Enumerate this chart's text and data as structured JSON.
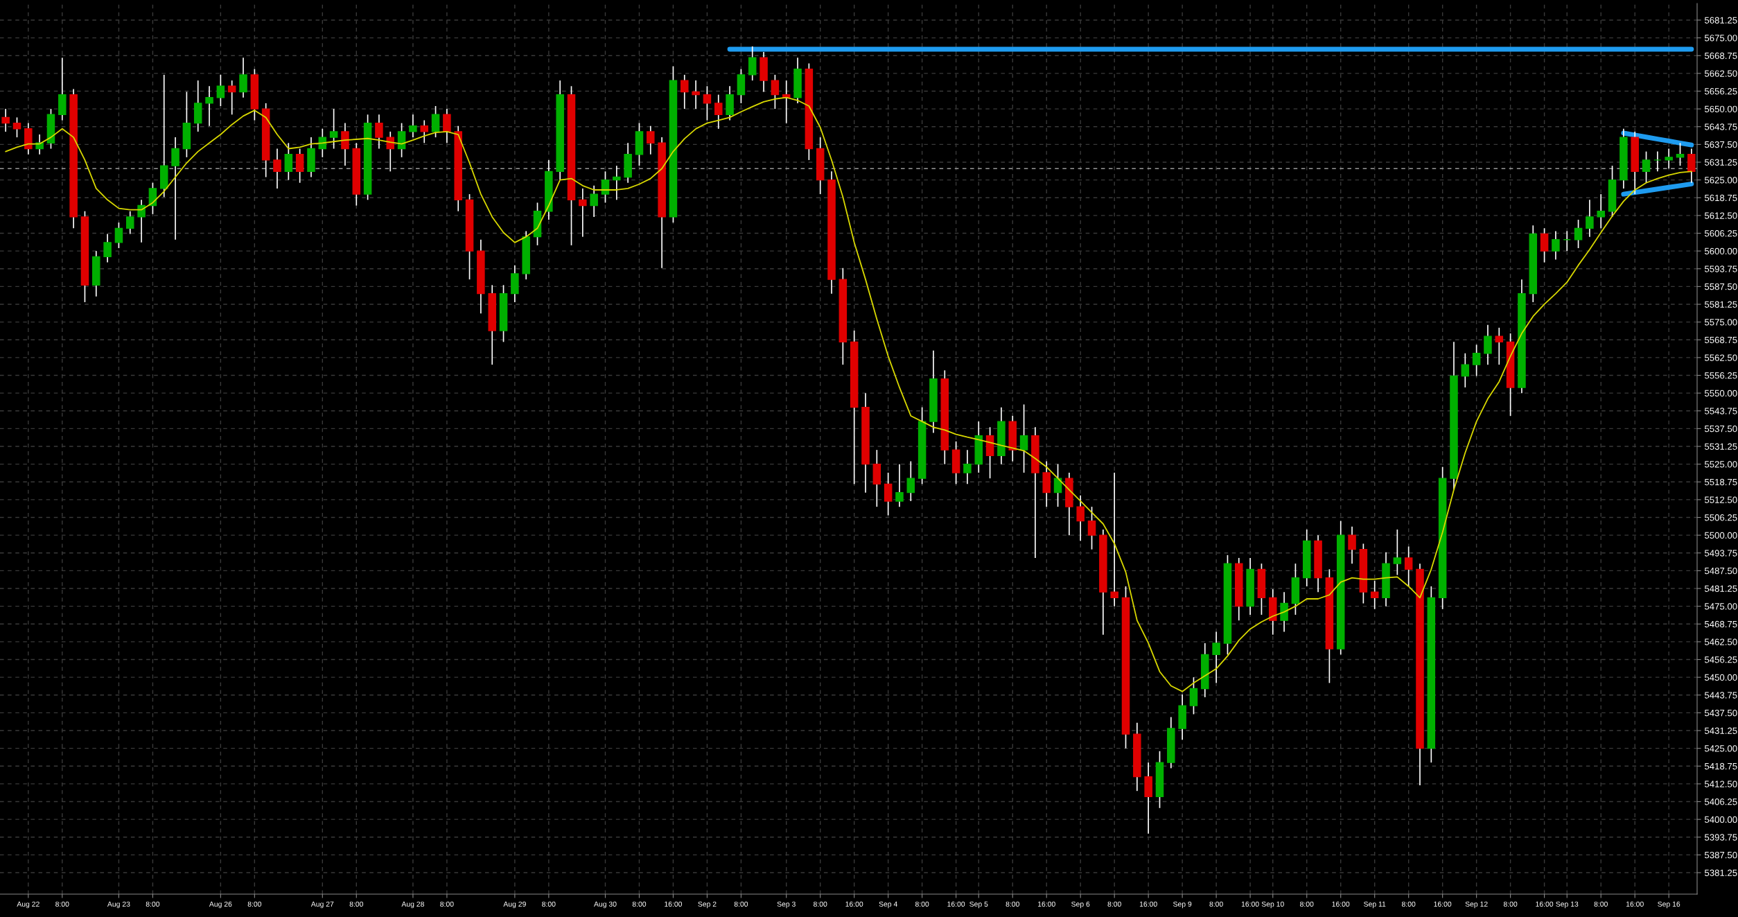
{
  "chart_data": {
    "type": "candlestick",
    "categories": [
      null,
      null,
      "Aug 22",
      null,
      null,
      "8:00",
      null,
      null,
      null,
      null,
      "Aug 23",
      null,
      null,
      "8:00",
      null,
      null,
      null,
      null,
      null,
      "Aug 26",
      null,
      null,
      "8:00",
      null,
      null,
      null,
      null,
      null,
      "Aug 27",
      null,
      null,
      "8:00",
      null,
      null,
      null,
      null,
      "Aug 28",
      null,
      null,
      "8:00",
      null,
      null,
      null,
      null,
      null,
      "Aug 29",
      null,
      null,
      "8:00",
      null,
      null,
      null,
      null,
      "Aug 30",
      null,
      null,
      "8:00",
      null,
      null,
      "16:00",
      null,
      null,
      "Sep 2",
      null,
      null,
      "8:00",
      null,
      null,
      null,
      "Sep 3",
      null,
      null,
      "8:00",
      null,
      null,
      "16:00",
      null,
      null,
      "Sep 4",
      null,
      null,
      "8:00",
      null,
      null,
      "16:00",
      null,
      "Sep 5",
      null,
      null,
      "8:00",
      null,
      null,
      "16:00",
      null,
      null,
      "Sep 6",
      null,
      null,
      "8:00",
      null,
      null,
      "16:00",
      null,
      null,
      "Sep 9",
      null,
      null,
      "8:00",
      null,
      null,
      "16:00",
      null,
      "Sep 10",
      null,
      null,
      "8:00",
      null,
      null,
      "16:00",
      null,
      null,
      "Sep 11",
      null,
      null,
      "8:00",
      null,
      null,
      "16:00",
      null,
      null,
      "Sep 12",
      null,
      null,
      "8:00",
      null,
      null,
      "16:00",
      null,
      "Sep 13",
      null,
      null,
      "8:00",
      null,
      null,
      "16:00",
      null,
      null,
      "Sep 16",
      null,
      null
    ],
    "ohlc": [
      [
        5647,
        5650,
        5642,
        5645
      ],
      [
        5645,
        5647,
        5640,
        5643
      ],
      [
        5643,
        5645,
        5634,
        5636
      ],
      [
        5636,
        5641,
        5634,
        5638
      ],
      [
        5638,
        5650,
        5636,
        5648
      ],
      [
        5648,
        5668,
        5646,
        5655
      ],
      [
        5655,
        5657,
        5608,
        5612
      ],
      [
        5612,
        5614,
        5582,
        5588
      ],
      [
        5588,
        5600,
        5584,
        5598
      ],
      [
        5598,
        5606,
        5596,
        5603
      ],
      [
        5603,
        5610,
        5601,
        5608
      ],
      [
        5608,
        5614,
        5606,
        5612
      ],
      [
        5612,
        5618,
        5603,
        5616
      ],
      [
        5616,
        5624,
        5613,
        5622
      ],
      [
        5622,
        5662,
        5619,
        5630
      ],
      [
        5630,
        5640,
        5604,
        5636
      ],
      [
        5636,
        5656,
        5633,
        5645
      ],
      [
        5645,
        5660,
        5642,
        5652
      ],
      [
        5652,
        5658,
        5644,
        5654
      ],
      [
        5654,
        5662,
        5651,
        5658
      ],
      [
        5658,
        5660,
        5648,
        5656
      ],
      [
        5656,
        5668,
        5654,
        5662
      ],
      [
        5662,
        5664,
        5646,
        5650
      ],
      [
        5650,
        5652,
        5626,
        5632
      ],
      [
        5632,
        5636,
        5622,
        5628
      ],
      [
        5628,
        5638,
        5625,
        5634
      ],
      [
        5634,
        5636,
        5624,
        5628
      ],
      [
        5628,
        5640,
        5626,
        5636
      ],
      [
        5636,
        5643,
        5633,
        5640
      ],
      [
        5640,
        5650,
        5636,
        5642
      ],
      [
        5642,
        5645,
        5630,
        5636
      ],
      [
        5636,
        5638,
        5616,
        5620
      ],
      [
        5620,
        5648,
        5618,
        5645
      ],
      [
        5645,
        5648,
        5636,
        5640
      ],
      [
        5640,
        5642,
        5628,
        5636
      ],
      [
        5636,
        5645,
        5633,
        5642
      ],
      [
        5642,
        5648,
        5640,
        5644
      ],
      [
        5644,
        5646,
        5638,
        5642
      ],
      [
        5642,
        5651,
        5640,
        5648
      ],
      [
        5648,
        5650,
        5638,
        5642
      ],
      [
        5642,
        5644,
        5614,
        5618
      ],
      [
        5618,
        5620,
        5590,
        5600
      ],
      [
        5600,
        5604,
        5578,
        5585
      ],
      [
        5585,
        5588,
        5560,
        5572
      ],
      [
        5572,
        5588,
        5568,
        5585
      ],
      [
        5585,
        5595,
        5582,
        5592
      ],
      [
        5592,
        5607,
        5590,
        5605
      ],
      [
        5605,
        5617,
        5602,
        5614
      ],
      [
        5614,
        5632,
        5611,
        5628
      ],
      [
        5628,
        5660,
        5625,
        5655
      ],
      [
        5655,
        5658,
        5602,
        5618
      ],
      [
        5618,
        5622,
        5605,
        5616
      ],
      [
        5616,
        5623,
        5612,
        5620
      ],
      [
        5620,
        5628,
        5617,
        5625
      ],
      [
        5625,
        5630,
        5618,
        5626
      ],
      [
        5626,
        5638,
        5624,
        5634
      ],
      [
        5634,
        5645,
        5630,
        5642
      ],
      [
        5642,
        5644,
        5634,
        5638
      ],
      [
        5638,
        5640,
        5594,
        5612
      ],
      [
        5612,
        5665,
        5610,
        5660
      ],
      [
        5660,
        5662,
        5650,
        5656
      ],
      [
        5656,
        5660,
        5650,
        5655
      ],
      [
        5655,
        5658,
        5646,
        5652
      ],
      [
        5652,
        5655,
        5643,
        5648
      ],
      [
        5648,
        5658,
        5646,
        5655
      ],
      [
        5655,
        5664,
        5652,
        5662
      ],
      [
        5662,
        5672,
        5660,
        5668
      ],
      [
        5668,
        5670,
        5656,
        5660
      ],
      [
        5660,
        5662,
        5650,
        5655
      ],
      [
        5655,
        5660,
        5645,
        5654
      ],
      [
        5654,
        5668,
        5652,
        5664
      ],
      [
        5664,
        5666,
        5632,
        5636
      ],
      [
        5636,
        5640,
        5620,
        5625
      ],
      [
        5625,
        5628,
        5585,
        5590
      ],
      [
        5590,
        5594,
        5560,
        5568
      ],
      [
        5568,
        5572,
        5518,
        5545
      ],
      [
        5545,
        5550,
        5515,
        5525
      ],
      [
        5525,
        5530,
        5510,
        5518
      ],
      [
        5518,
        5522,
        5507,
        5512
      ],
      [
        5512,
        5525,
        5510,
        5515
      ],
      [
        5515,
        5526,
        5512,
        5520
      ],
      [
        5520,
        5545,
        5518,
        5540
      ],
      [
        5540,
        5565,
        5536,
        5555
      ],
      [
        5555,
        5558,
        5525,
        5530
      ],
      [
        5530,
        5533,
        5518,
        5522
      ],
      [
        5522,
        5530,
        5518,
        5525
      ],
      [
        5525,
        5540,
        5522,
        5535
      ],
      [
        5535,
        5538,
        5520,
        5528
      ],
      [
        5528,
        5545,
        5525,
        5540
      ],
      [
        5540,
        5542,
        5526,
        5530
      ],
      [
        5530,
        5546,
        5522,
        5535
      ],
      [
        5535,
        5538,
        5492,
        5522
      ],
      [
        5522,
        5526,
        5510,
        5515
      ],
      [
        5515,
        5525,
        5510,
        5520
      ],
      [
        5520,
        5522,
        5500,
        5510
      ],
      [
        5510,
        5514,
        5498,
        5505
      ],
      [
        5505,
        5510,
        5495,
        5500
      ],
      [
        5500,
        5502,
        5465,
        5480
      ],
      [
        5480,
        5522,
        5475,
        5478
      ],
      [
        5478,
        5482,
        5425,
        5430
      ],
      [
        5430,
        5434,
        5410,
        5415
      ],
      [
        5415,
        5420,
        5395,
        5408
      ],
      [
        5408,
        5424,
        5404,
        5420
      ],
      [
        5420,
        5436,
        5418,
        5432
      ],
      [
        5432,
        5444,
        5428,
        5440
      ],
      [
        5440,
        5450,
        5437,
        5446
      ],
      [
        5446,
        5462,
        5443,
        5458
      ],
      [
        5458,
        5466,
        5448,
        5462
      ],
      [
        5462,
        5493,
        5458,
        5490
      ],
      [
        5490,
        5492,
        5470,
        5475
      ],
      [
        5475,
        5492,
        5472,
        5488
      ],
      [
        5488,
        5490,
        5472,
        5478
      ],
      [
        5478,
        5481,
        5465,
        5470
      ],
      [
        5470,
        5480,
        5466,
        5476
      ],
      [
        5476,
        5490,
        5472,
        5485
      ],
      [
        5485,
        5502,
        5482,
        5498
      ],
      [
        5498,
        5500,
        5480,
        5485
      ],
      [
        5485,
        5488,
        5448,
        5460
      ],
      [
        5460,
        5505,
        5458,
        5500
      ],
      [
        5500,
        5503,
        5490,
        5495
      ],
      [
        5495,
        5497,
        5476,
        5480
      ],
      [
        5480,
        5484,
        5474,
        5478
      ],
      [
        5478,
        5494,
        5475,
        5490
      ],
      [
        5490,
        5502,
        5486,
        5492
      ],
      [
        5492,
        5496,
        5482,
        5488
      ],
      [
        5488,
        5490,
        5412,
        5425
      ],
      [
        5425,
        5482,
        5420,
        5478
      ],
      [
        5478,
        5524,
        5474,
        5520
      ],
      [
        5520,
        5568,
        5516,
        5556
      ],
      [
        5556,
        5564,
        5552,
        5560
      ],
      [
        5560,
        5567,
        5556,
        5564
      ],
      [
        5564,
        5574,
        5560,
        5570
      ],
      [
        5570,
        5573,
        5560,
        5568
      ],
      [
        5568,
        5571,
        5542,
        5552
      ],
      [
        5552,
        5590,
        5550,
        5585
      ],
      [
        5585,
        5609,
        5582,
        5606
      ],
      [
        5606,
        5608,
        5596,
        5600
      ],
      [
        5600,
        5607,
        5597,
        5604
      ],
      [
        5604,
        5607,
        5600,
        5604
      ],
      [
        5604,
        5611,
        5601,
        5608
      ],
      [
        5608,
        5618,
        5605,
        5612
      ],
      [
        5612,
        5620,
        5608,
        5614
      ],
      [
        5614,
        5630,
        5612,
        5625
      ],
      [
        5625,
        5643,
        5622,
        5640
      ],
      [
        5640,
        5642,
        5620,
        5628
      ],
      [
        5628,
        5635,
        5624,
        5632
      ],
      [
        5632,
        5635,
        5628,
        5632
      ],
      [
        5632,
        5636,
        5629,
        5633
      ],
      [
        5633,
        5638,
        5630,
        5634
      ],
      [
        5634,
        5636,
        5624,
        5628
      ]
    ],
    "colors": [
      "#e00000",
      "#e00000",
      "#e00000",
      "#00b000",
      "#00b000",
      "#00b000",
      "#e00000",
      "#e00000",
      "#00b000",
      "#00b000",
      "#00b000",
      "#00b000",
      "#00b000",
      "#00b000",
      "#00b000",
      "#00b000",
      "#00b000",
      "#00b000",
      "#00b000",
      "#00b000",
      "#e00000",
      "#00b000",
      "#e00000",
      "#e00000",
      "#e00000",
      "#00b000",
      "#e00000",
      "#00b000",
      "#00b000",
      "#00b000",
      "#e00000",
      "#e00000",
      "#00b000",
      "#e00000",
      "#e00000",
      "#00b000",
      "#00b000",
      "#e00000",
      "#00b000",
      "#e00000",
      "#e00000",
      "#e00000",
      "#e00000",
      "#e00000",
      "#00b000",
      "#00b000",
      "#00b000",
      "#00b000",
      "#00b000",
      "#00b000",
      "#e00000",
      "#e00000",
      "#00b000",
      "#00b000",
      "#00b000",
      "#00b000",
      "#00b000",
      "#e00000",
      "#e00000",
      "#00b000",
      "#e00000",
      "#e00000",
      "#e00000",
      "#e00000",
      "#00b000",
      "#00b000",
      "#00b000",
      "#e00000",
      "#e00000",
      "#e00000",
      "#00b000",
      "#e00000",
      "#e00000",
      "#e00000",
      "#e00000",
      "#e00000",
      "#e00000",
      "#e00000",
      "#e00000",
      "#00b000",
      "#00b000",
      "#00b000",
      "#00b000",
      "#e00000",
      "#e00000",
      "#00b000",
      "#00b000",
      "#e00000",
      "#00b000",
      "#e00000",
      "#00b000",
      "#e00000",
      "#e00000",
      "#00b000",
      "#e00000",
      "#e00000",
      "#e00000",
      "#e00000",
      "#e00000",
      "#e00000",
      "#e00000",
      "#e00000",
      "#00b000",
      "#00b000",
      "#00b000",
      "#00b000",
      "#00b000",
      "#00b000",
      "#00b000",
      "#e00000",
      "#00b000",
      "#e00000",
      "#e00000",
      "#00b000",
      "#00b000",
      "#00b000",
      "#e00000",
      "#e00000",
      "#00b000",
      "#e00000",
      "#e00000",
      "#e00000",
      "#00b000",
      "#00b000",
      "#e00000",
      "#e00000",
      "#00b000",
      "#00b000",
      "#00b000",
      "#00b000",
      "#00b000",
      "#00b000",
      "#e00000",
      "#e00000",
      "#00b000",
      "#00b000",
      "#e00000",
      "#00b000",
      "#00b000",
      "#00b000",
      "#00b000",
      "#00b000",
      "#00b000",
      "#00b000",
      "#e00000",
      "#00b000",
      "#00b000",
      "#00b000",
      "#00b000",
      "#e00000"
    ],
    "series": [
      {
        "type": "line",
        "color": "#d8d800",
        "values": [
          5635,
          5636.5,
          5637.7,
          5637.7,
          5640,
          5643,
          5640,
          5632,
          5622,
          5618,
          5615,
          5614.5,
          5614.5,
          5617,
          5621,
          5626,
          5631,
          5635,
          5638,
          5641,
          5644.5,
          5647.5,
          5649.5,
          5647,
          5641,
          5636,
          5636.5,
          5637.7,
          5638,
          5638.5,
          5639,
          5639.3,
          5639.6,
          5639,
          5638.3,
          5637.7,
          5639,
          5640.5,
          5641.7,
          5642,
          5641,
          5631,
          5620,
          5612,
          5606.5,
          5603,
          5605,
          5608,
          5616,
          5625,
          5625.5,
          5623,
          5621.5,
          5621.5,
          5621.5,
          5622,
          5623.5,
          5625.5,
          5629,
          5635,
          5639.5,
          5643,
          5645,
          5646,
          5647,
          5649,
          5650.8,
          5652.5,
          5653.5,
          5654,
          5653,
          5651,
          5643.5,
          5632,
          5619,
          5603,
          5590,
          5576,
          5563,
          5552,
          5542,
          5540,
          5538,
          5537,
          5535.5,
          5534.5,
          5533.6,
          5532.6,
          5531.6,
          5530.7,
          5529.7,
          5527,
          5524,
          5520,
          5516,
          5512,
          5508,
          5504,
          5497,
          5487,
          5470,
          5462,
          5452,
          5447,
          5445,
          5448,
          5450.5,
          5453,
          5457.5,
          5463,
          5467,
          5469.5,
          5471.5,
          5473,
          5475,
          5477.6,
          5477.6,
          5479,
          5483.5,
          5485,
          5484.5,
          5484.5,
          5485,
          5485.3,
          5482,
          5478,
          5488,
          5501,
          5516,
          5529,
          5540,
          5548,
          5554,
          5563,
          5571,
          5577,
          5581.3,
          5585,
          5589,
          5595,
          5600.5,
          5606.5,
          5612.3,
          5617.5,
          5621.5,
          5624,
          5625.5,
          5626.7,
          5627.6,
          5628
        ]
      },
      {
        "type": "line",
        "color": "#1e9bef",
        "values": [
          null,
          null,
          null,
          null,
          null,
          null,
          null,
          null,
          null,
          null,
          null,
          null,
          null,
          null,
          null,
          null,
          null,
          null,
          null,
          null,
          null,
          null,
          null,
          null,
          null,
          null,
          null,
          null,
          null,
          null,
          null,
          null,
          null,
          null,
          null,
          null,
          null,
          null,
          null,
          null,
          null,
          null,
          null,
          null,
          null,
          null,
          null,
          null,
          null,
          null,
          null,
          null,
          null,
          null,
          null,
          null,
          null,
          null,
          null,
          null,
          null,
          null,
          null,
          null,
          5671,
          5671,
          5671,
          5671,
          5671,
          5671,
          5671,
          5671,
          5671,
          5671,
          5671,
          5671,
          5671,
          5671,
          5671,
          5671,
          5671,
          5671,
          5671,
          5671,
          5671,
          5671,
          5671,
          5671,
          5671,
          5671,
          5671,
          5671,
          5671,
          5671,
          5671,
          5671,
          5671,
          5671,
          5671,
          5671,
          5671,
          5671,
          5671,
          5671,
          5671,
          5671,
          5671,
          5671,
          5671,
          5671,
          5671,
          5671,
          5671,
          5671,
          5671,
          5671,
          5671,
          5671,
          5671,
          5671,
          5671,
          5671,
          5671,
          5671,
          5671,
          5671,
          5671,
          5671,
          5671,
          5671,
          5671,
          5671,
          5671,
          5671,
          5671,
          5671,
          5671,
          5671,
          5671,
          5671,
          5671,
          5671,
          5671,
          5671,
          5671,
          5671,
          5671,
          5671,
          5671,
          5671
        ]
      },
      {
        "type": "line",
        "color": "#1e9bef",
        "values": [
          null,
          null,
          null,
          null,
          null,
          null,
          null,
          null,
          null,
          null,
          null,
          null,
          null,
          null,
          null,
          null,
          null,
          null,
          null,
          null,
          null,
          null,
          null,
          null,
          null,
          null,
          null,
          null,
          null,
          null,
          null,
          null,
          null,
          null,
          null,
          null,
          null,
          null,
          null,
          null,
          null,
          null,
          null,
          null,
          null,
          null,
          null,
          null,
          null,
          null,
          null,
          null,
          null,
          null,
          null,
          null,
          null,
          null,
          null,
          null,
          null,
          null,
          null,
          null,
          null,
          null,
          null,
          null,
          null,
          null,
          null,
          null,
          null,
          null,
          null,
          null,
          null,
          null,
          null,
          null,
          null,
          null,
          null,
          null,
          null,
          null,
          null,
          null,
          null,
          null,
          null,
          null,
          null,
          null,
          null,
          null,
          null,
          null,
          null,
          null,
          null,
          null,
          null,
          null,
          null,
          null,
          null,
          null,
          null,
          null,
          null,
          null,
          null,
          null,
          null,
          null,
          null,
          null,
          null,
          null,
          null,
          null,
          null,
          null,
          null,
          null,
          null,
          null,
          null,
          null,
          null,
          null,
          null,
          null,
          null,
          null,
          null,
          null,
          null,
          null,
          null,
          null,
          null,
          5641.5,
          5640.8,
          5640.1,
          5639.4,
          5638.7,
          5638,
          5637.3
        ]
      },
      {
        "type": "line",
        "color": "#1e9bef",
        "values": [
          null,
          null,
          null,
          null,
          null,
          null,
          null,
          null,
          null,
          null,
          null,
          null,
          null,
          null,
          null,
          null,
          null,
          null,
          null,
          null,
          null,
          null,
          null,
          null,
          null,
          null,
          null,
          null,
          null,
          null,
          null,
          null,
          null,
          null,
          null,
          null,
          null,
          null,
          null,
          null,
          null,
          null,
          null,
          null,
          null,
          null,
          null,
          null,
          null,
          null,
          null,
          null,
          null,
          null,
          null,
          null,
          null,
          null,
          null,
          null,
          null,
          null,
          null,
          null,
          null,
          null,
          null,
          null,
          null,
          null,
          null,
          null,
          null,
          null,
          null,
          null,
          null,
          null,
          null,
          null,
          null,
          null,
          null,
          null,
          null,
          null,
          null,
          null,
          null,
          null,
          null,
          null,
          null,
          null,
          null,
          null,
          null,
          null,
          null,
          null,
          null,
          null,
          null,
          null,
          null,
          null,
          null,
          null,
          null,
          null,
          null,
          null,
          null,
          null,
          null,
          null,
          null,
          null,
          null,
          null,
          null,
          null,
          null,
          null,
          null,
          null,
          null,
          null,
          null,
          null,
          null,
          null,
          null,
          null,
          null,
          null,
          null,
          null,
          null,
          null,
          null,
          null,
          null,
          5620,
          5620.6,
          5621.2,
          5621.8,
          5622.4,
          5623,
          5623.6
        ]
      }
    ],
    "ref_lines": [
      {
        "axis": "y",
        "value": 5629,
        "color": "#9a9a9a",
        "line_style": "dashed"
      }
    ],
    "ylim": [
      5373.7,
      5687.1
    ],
    "yticks": [
      {
        "value": 5381.25,
        "label": "5381.25"
      },
      {
        "value": 5387.5,
        "label": "5387.50"
      },
      {
        "value": 5393.75,
        "label": "5393.75"
      },
      {
        "value": 5400,
        "label": "5400.00"
      },
      {
        "value": 5406.25,
        "label": "5406.25"
      },
      {
        "value": 5412.5,
        "label": "5412.50"
      },
      {
        "value": 5418.75,
        "label": "5418.75"
      },
      {
        "value": 5425,
        "label": "5425.00"
      },
      {
        "value": 5431.25,
        "label": "5431.25"
      },
      {
        "value": 5437.5,
        "label": "5437.50"
      },
      {
        "value": 5443.75,
        "label": "5443.75"
      },
      {
        "value": 5450,
        "label": "5450.00"
      },
      {
        "value": 5456.25,
        "label": "5456.25"
      },
      {
        "value": 5462.5,
        "label": "5462.50"
      },
      {
        "value": 5468.75,
        "label": "5468.75"
      },
      {
        "value": 5475,
        "label": "5475.00"
      },
      {
        "value": 5481.25,
        "label": "5481.25"
      },
      {
        "value": 5487.5,
        "label": "5487.50"
      },
      {
        "value": 5493.75,
        "label": "5493.75"
      },
      {
        "value": 5500,
        "label": "5500.00"
      },
      {
        "value": 5506.25,
        "label": "5506.25"
      },
      {
        "value": 5512.5,
        "label": "5512.50"
      },
      {
        "value": 5518.75,
        "label": "5518.75"
      },
      {
        "value": 5525,
        "label": "5525.00"
      },
      {
        "value": 5531.25,
        "label": "5531.25"
      },
      {
        "value": 5537.5,
        "label": "5537.50"
      },
      {
        "value": 5543.75,
        "label": "5543.75"
      },
      {
        "value": 5550,
        "label": "5550.00"
      },
      {
        "value": 5556.25,
        "label": "5556.25"
      },
      {
        "value": 5562.5,
        "label": "5562.50"
      },
      {
        "value": 5568.75,
        "label": "5568.75"
      },
      {
        "value": 5575,
        "label": "5575.00"
      },
      {
        "value": 5581.25,
        "label": "5581.25"
      },
      {
        "value": 5587.5,
        "label": "5587.50"
      },
      {
        "value": 5593.75,
        "label": "5593.75"
      },
      {
        "value": 5600,
        "label": "5600.00"
      },
      {
        "value": 5606.25,
        "label": "5606.25"
      },
      {
        "value": 5612.5,
        "label": "5612.50"
      },
      {
        "value": 5618.75,
        "label": "5618.75"
      },
      {
        "value": 5625,
        "label": "5625.00"
      },
      {
        "value": 5631.25,
        "label": "5631.25"
      },
      {
        "value": 5637.5,
        "label": "5637.50"
      },
      {
        "value": 5643.75,
        "label": "5643.75"
      },
      {
        "value": 5650,
        "label": "5650.00"
      },
      {
        "value": 5656.25,
        "label": "5656.25"
      },
      {
        "value": 5662.5,
        "label": "5662.50"
      },
      {
        "value": 5668.75,
        "label": "5668.75"
      },
      {
        "value": 5675,
        "label": "5675.00"
      },
      {
        "value": 5681.25,
        "label": "5681.25"
      }
    ],
    "grid": true
  }
}
